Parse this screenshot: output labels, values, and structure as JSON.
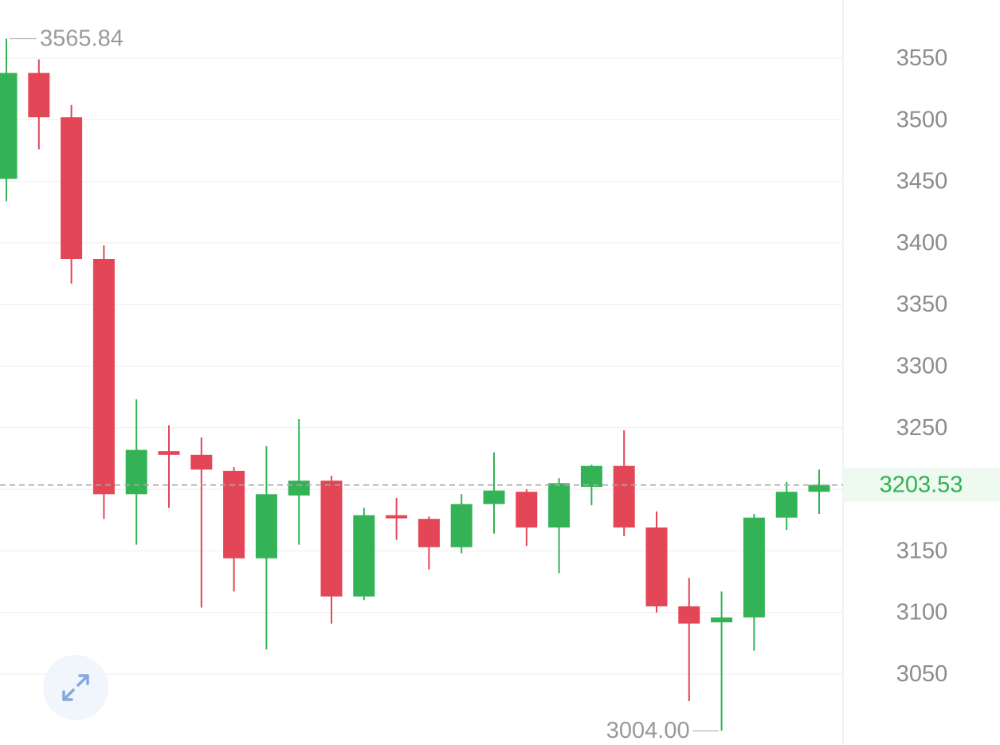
{
  "chart_data": {
    "type": "candlestick",
    "ylim": [
      3000,
      3590
    ],
    "y_ticks": [
      3550,
      3500,
      3450,
      3400,
      3350,
      3300,
      3250,
      3150,
      3100,
      3050
    ],
    "grid": true,
    "last_price": 3203.53,
    "last_price_label": "3203.53",
    "high_label": "3565.84",
    "low_label": "3004.00",
    "candles": [
      {
        "open": 3452,
        "high": 3565.84,
        "low": 3434,
        "close": 3538
      },
      {
        "open": 3538,
        "high": 3549,
        "low": 3476,
        "close": 3502
      },
      {
        "open": 3502,
        "high": 3512,
        "low": 3367,
        "close": 3387
      },
      {
        "open": 3387,
        "high": 3398,
        "low": 3176,
        "close": 3196
      },
      {
        "open": 3196,
        "high": 3273,
        "low": 3155,
        "close": 3232
      },
      {
        "open": 3231,
        "high": 3252,
        "low": 3185,
        "close": 3228
      },
      {
        "open": 3228,
        "high": 3242,
        "low": 3104,
        "close": 3216
      },
      {
        "open": 3215,
        "high": 3218,
        "low": 3117,
        "close": 3144
      },
      {
        "open": 3144,
        "high": 3235,
        "low": 3070,
        "close": 3196
      },
      {
        "open": 3195,
        "high": 3257,
        "low": 3155,
        "close": 3207
      },
      {
        "open": 3207,
        "high": 3211,
        "low": 3091,
        "close": 3113
      },
      {
        "open": 3113,
        "high": 3185,
        "low": 3110,
        "close": 3179
      },
      {
        "open": 3179,
        "high": 3193,
        "low": 3159,
        "close": 3177
      },
      {
        "open": 3176,
        "high": 3178,
        "low": 3135,
        "close": 3153
      },
      {
        "open": 3153,
        "high": 3196,
        "low": 3148,
        "close": 3188
      },
      {
        "open": 3188,
        "high": 3230,
        "low": 3164,
        "close": 3199
      },
      {
        "open": 3198,
        "high": 3200,
        "low": 3154,
        "close": 3169
      },
      {
        "open": 3169,
        "high": 3209,
        "low": 3132,
        "close": 3205
      },
      {
        "open": 3202,
        "high": 3220,
        "low": 3187,
        "close": 3219
      },
      {
        "open": 3219,
        "high": 3248,
        "low": 3162,
        "close": 3169
      },
      {
        "open": 3169,
        "high": 3182,
        "low": 3100,
        "close": 3105
      },
      {
        "open": 3105,
        "high": 3128,
        "low": 3028,
        "close": 3091
      },
      {
        "open": 3092,
        "high": 3117,
        "low": 3004.0,
        "close": 3096
      },
      {
        "open": 3096,
        "high": 3180,
        "low": 3069,
        "close": 3177
      },
      {
        "open": 3177,
        "high": 3206,
        "low": 3167,
        "close": 3198
      },
      {
        "open": 3198,
        "high": 3216,
        "low": 3180,
        "close": 3203.53
      }
    ]
  },
  "colors": {
    "up": "#34b356",
    "down": "#e34656",
    "grid": "#eeeeee",
    "tick_text": "#8c8c8c",
    "annotation_text": "#9a9a9a",
    "last_price_line": "#a8a8a8",
    "last_price_bg": "#eef9f0",
    "last_price_text": "#2fb251",
    "expand_icon": "#84a9e0"
  },
  "controls": {
    "expand_icon": "expand-arrows-icon"
  }
}
